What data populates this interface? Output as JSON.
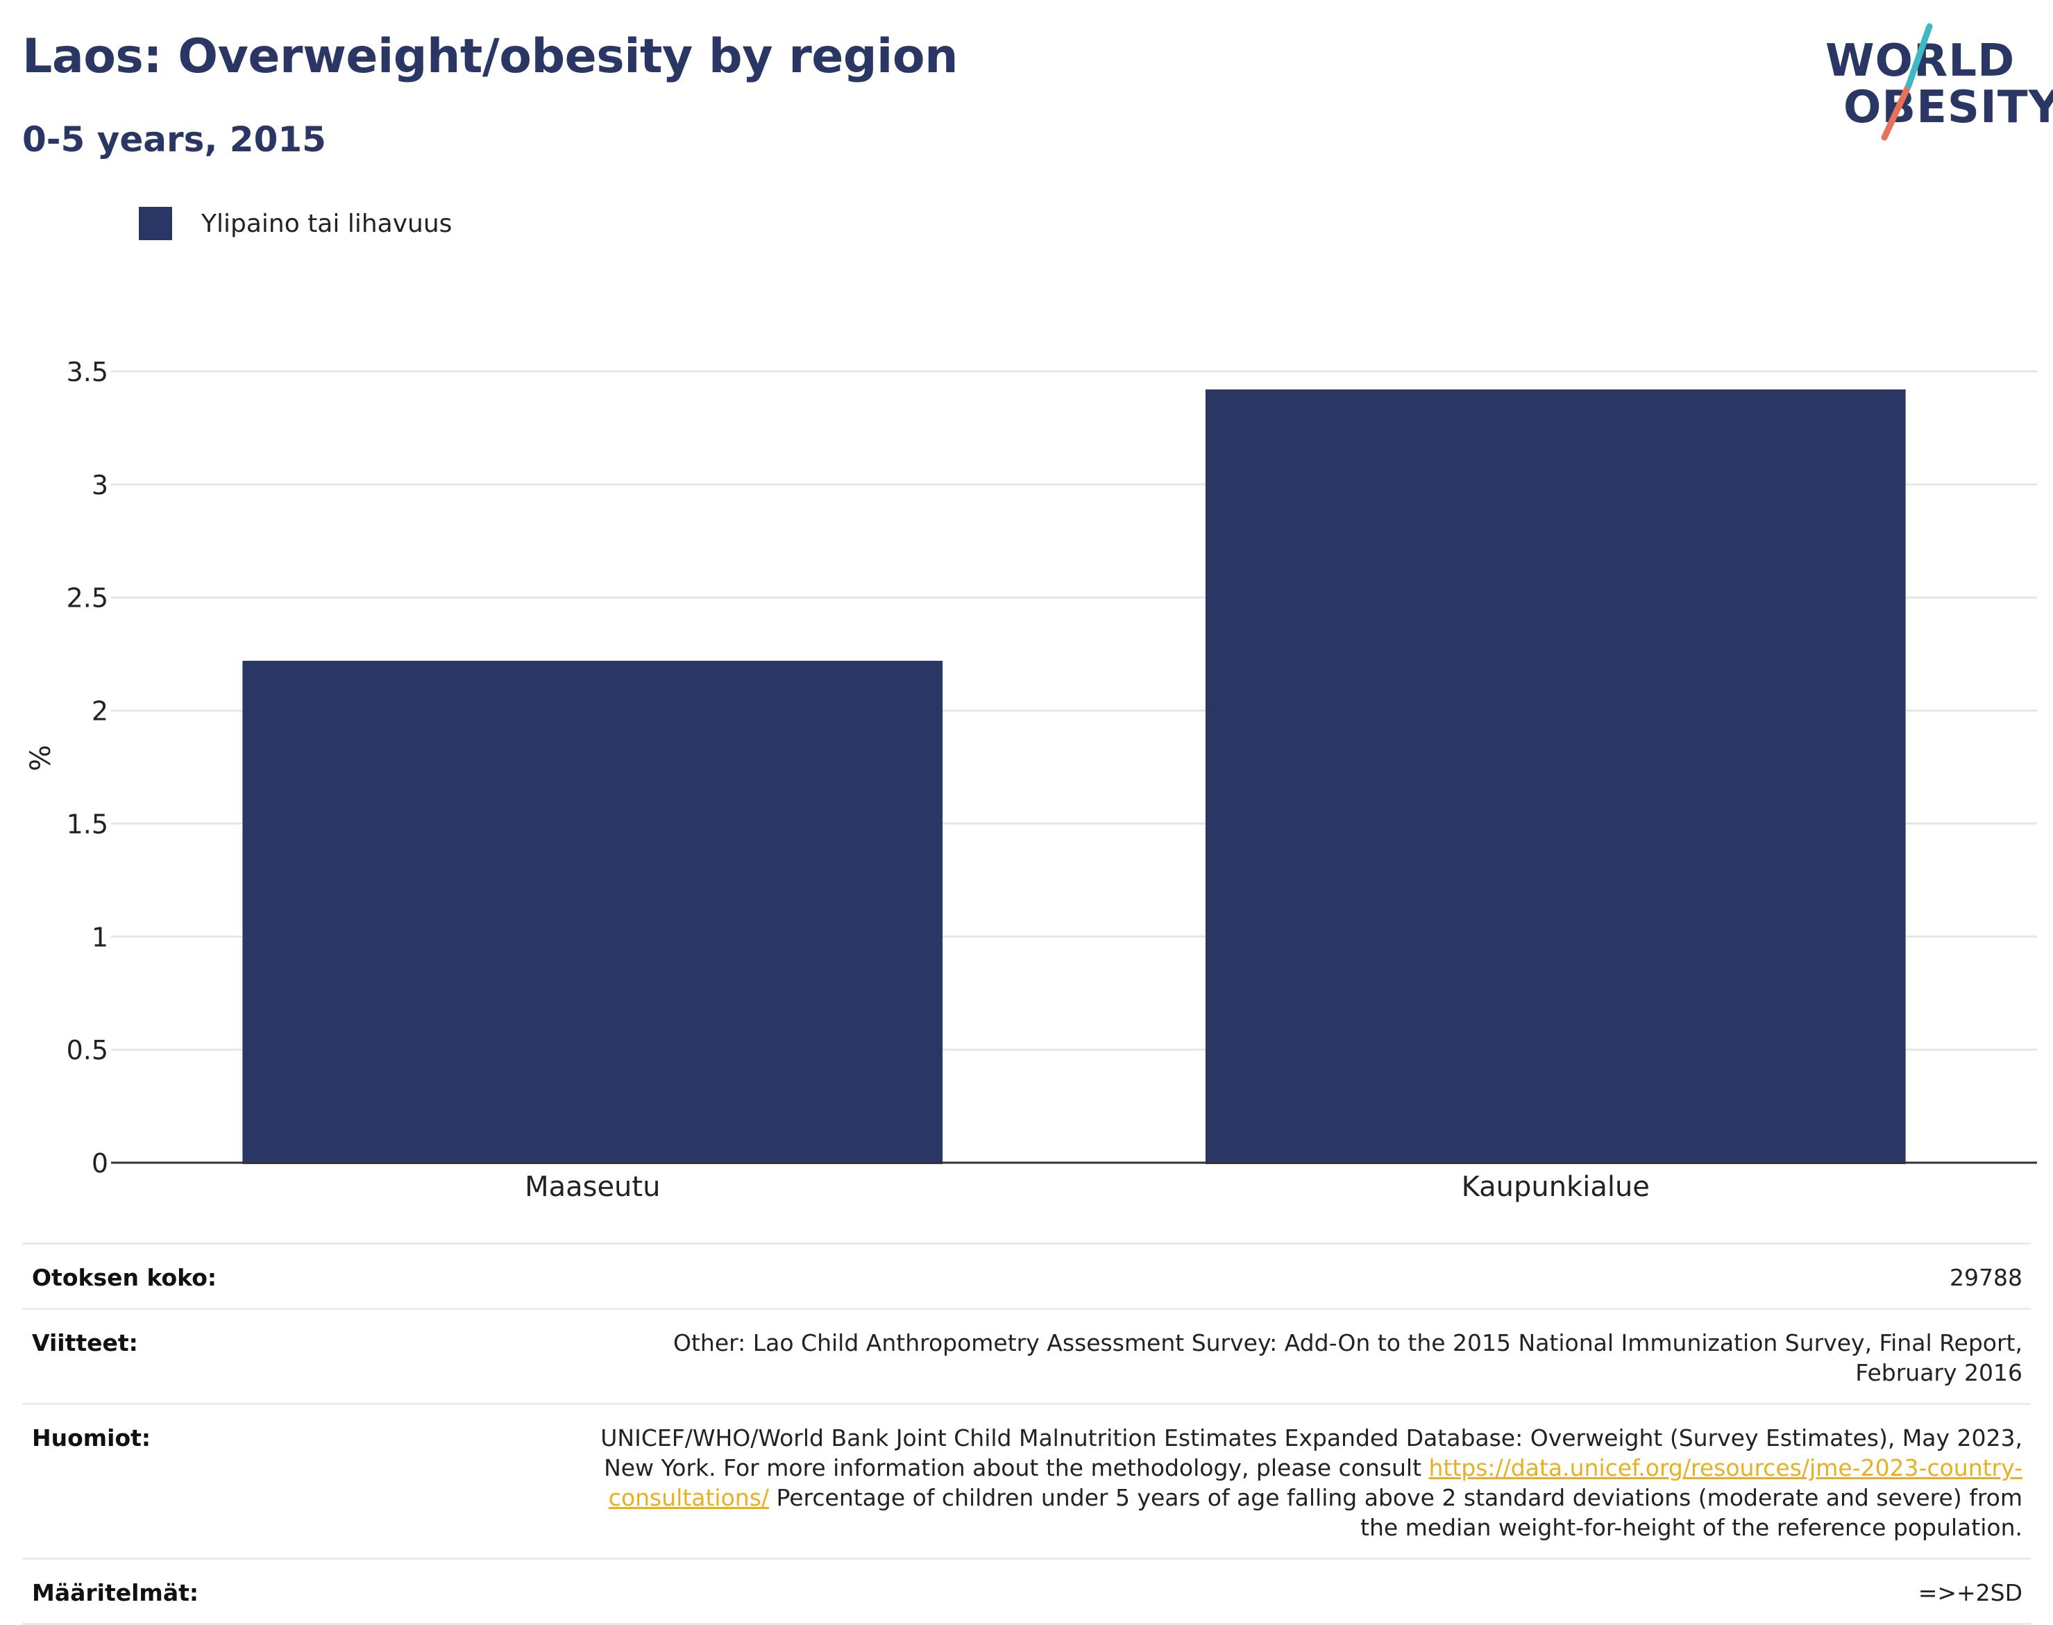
{
  "header": {
    "title": "Laos: Overweight/obesity by region",
    "subtitle": "0-5 years, 2015"
  },
  "logo": {
    "line1": "WORLD",
    "line2": "OBESITY"
  },
  "colors": {
    "bar": "#2a3663",
    "title": "#2a3663",
    "link": "#e8b020",
    "logo_teal": "#3fb9c4",
    "logo_coral": "#e8715a"
  },
  "chart_data": {
    "type": "bar",
    "categories": [
      "Maaseutu",
      "Kaupunkialue"
    ],
    "series": [
      {
        "name": "Ylipaino tai lihavuus",
        "values": [
          2.22,
          3.42
        ]
      }
    ],
    "ylabel": "%",
    "xlabel": "",
    "ylim": [
      0,
      3.5
    ],
    "yticks": [
      0,
      0.5,
      1,
      1.5,
      2,
      2.5,
      3,
      3.5
    ],
    "ytick_labels": [
      "0",
      "0.5",
      "1",
      "1.5",
      "2",
      "2.5",
      "3",
      "3.5"
    ],
    "grid": true,
    "legend": "top-left"
  },
  "meta": {
    "rows": [
      {
        "key": "Otoksen koko:",
        "value": "29788"
      },
      {
        "key": "Viitteet:",
        "value": "Other: Lao Child Anthropometry Assessment Survey: Add-On to the 2015 National Immunization Survey, Final Report, February 2016"
      },
      {
        "key": "Huomiot:",
        "value_pre": "UNICEF/WHO/World Bank Joint Child Malnutrition Estimates Expanded Database: Overweight (Survey Estimates), May 2023, New York. For more information about the methodology, please consult ",
        "link": "https://data.unicef.org/resources/jme-2023-country-consultations/",
        "value_post": " Percentage of children under 5 years of age falling above 2 standard deviations (moderate and severe) from the median weight-for-height of the reference population."
      },
      {
        "key": "Määritelmät:",
        "value": "=>+2SD"
      }
    ]
  }
}
